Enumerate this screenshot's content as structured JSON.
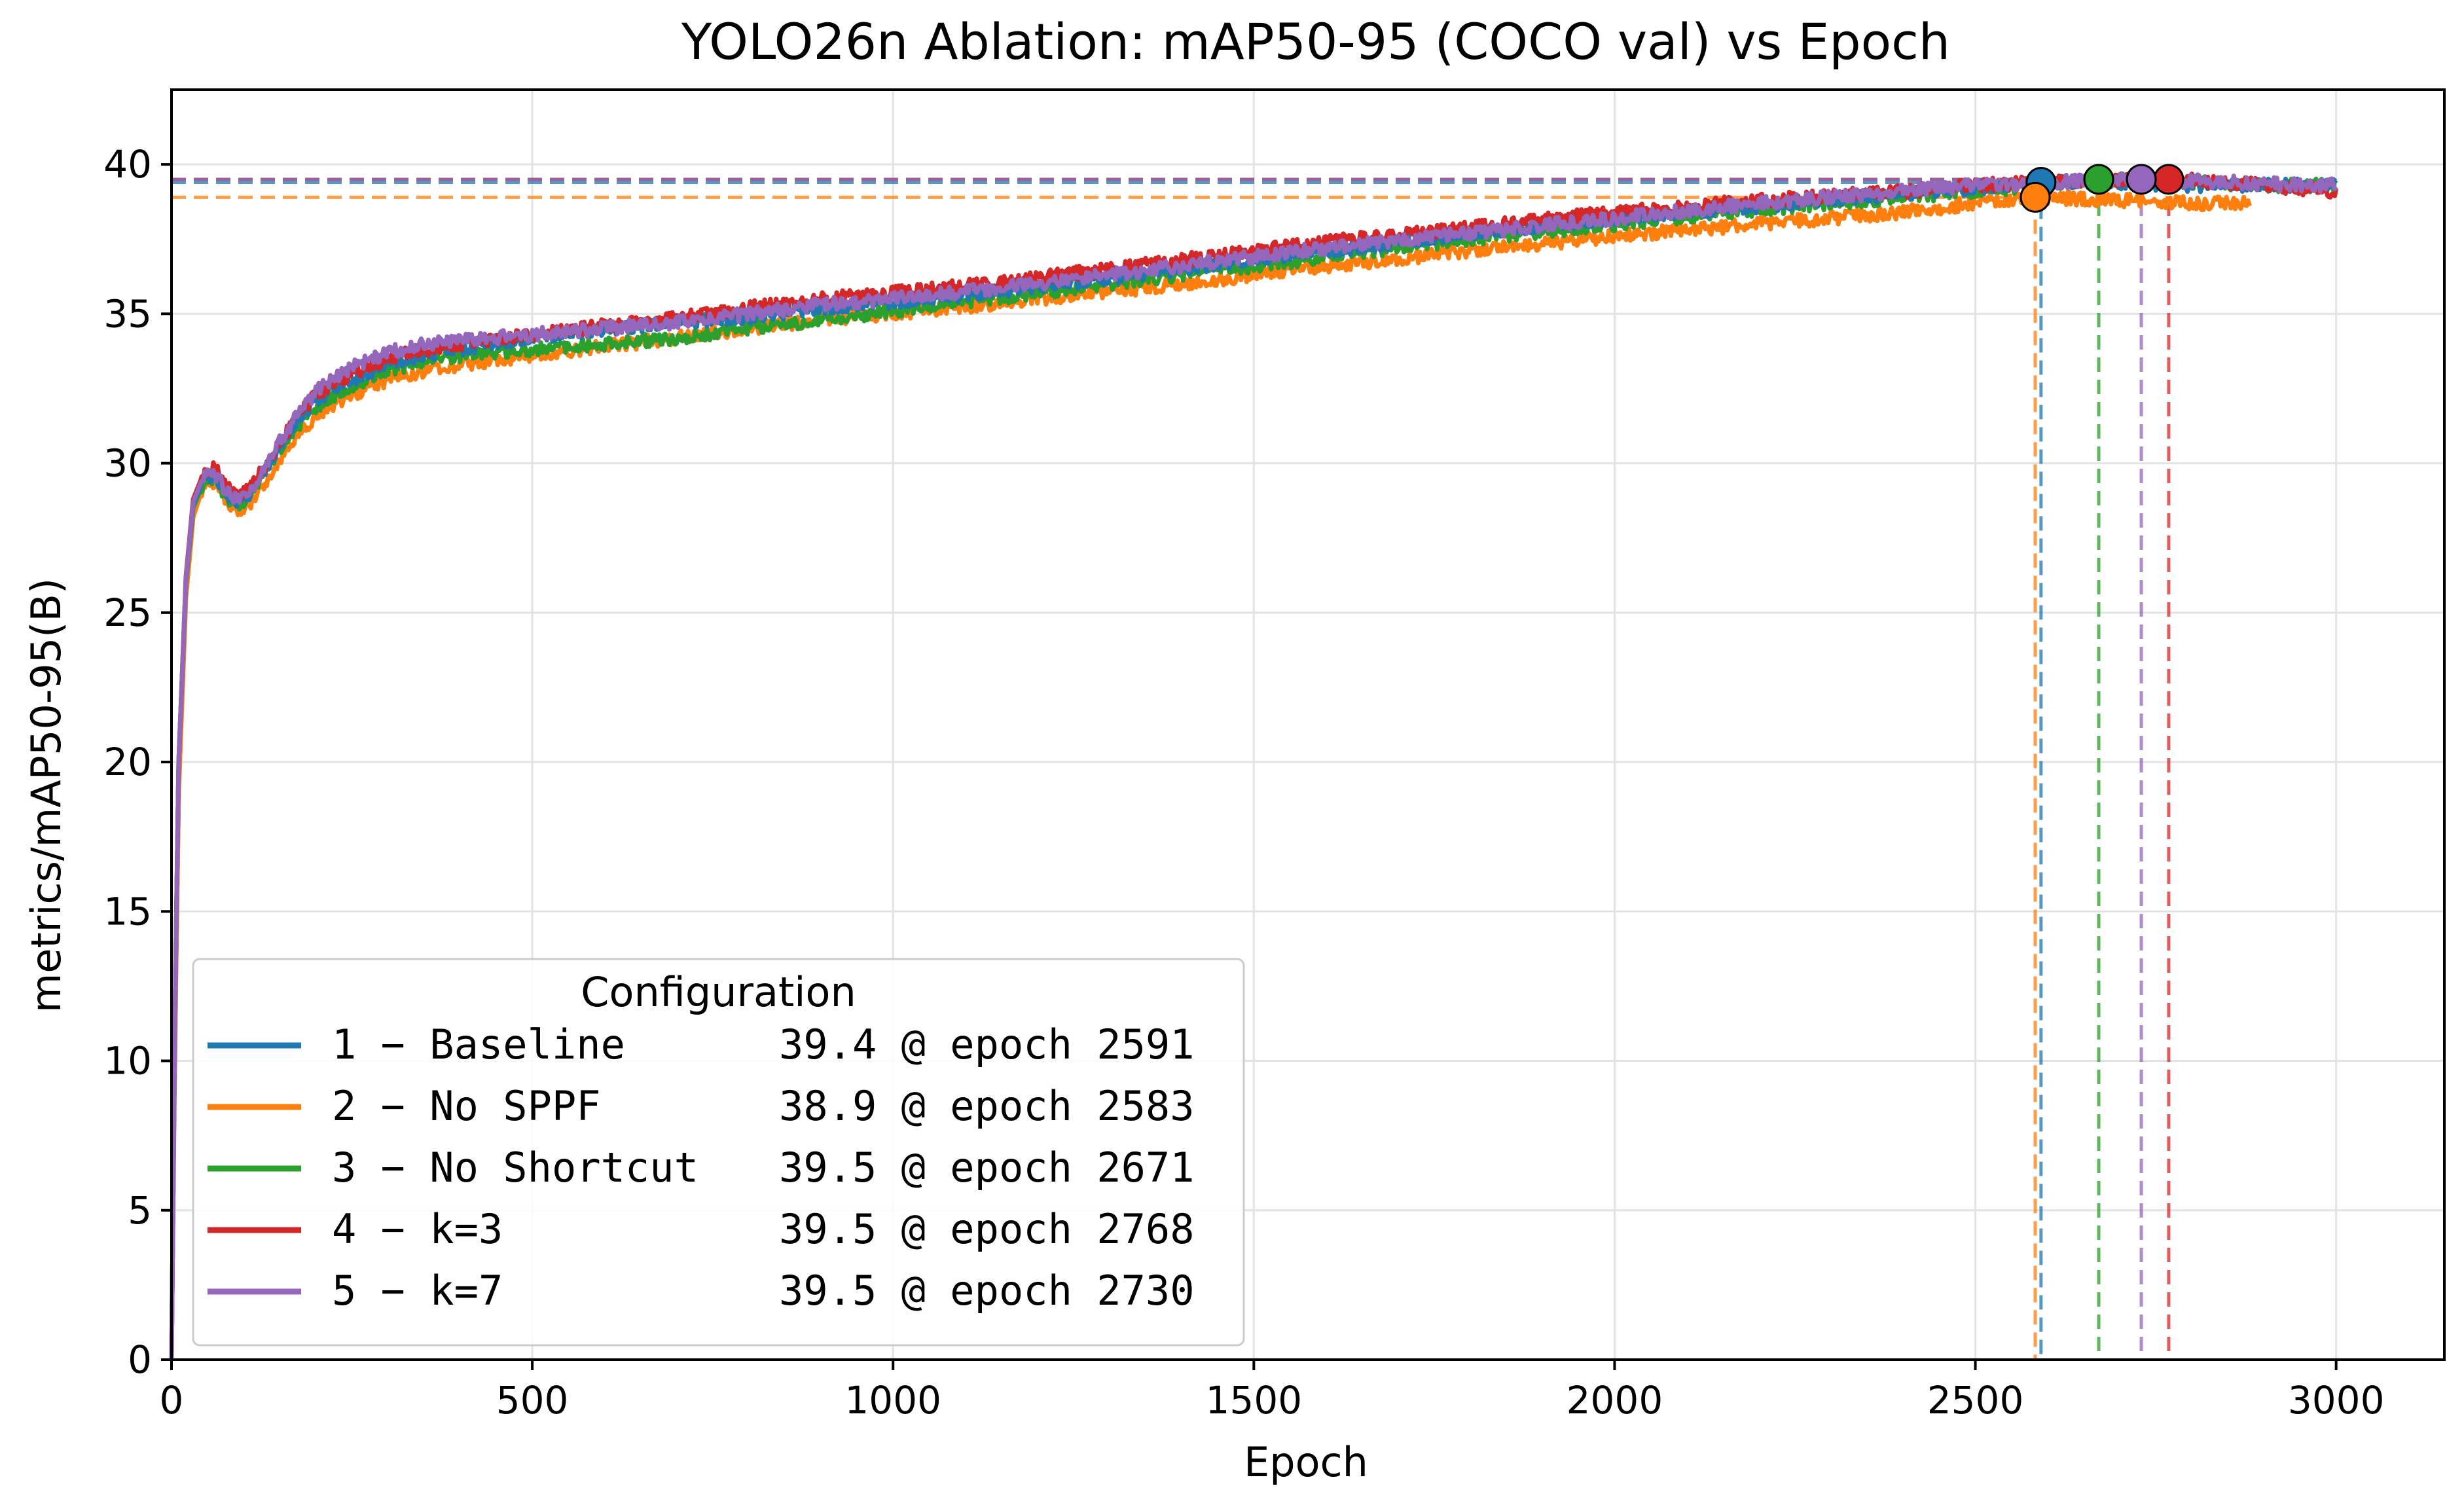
{
  "chart_data": {
    "type": "line",
    "title": "YOLO26n Ablation: mAP50-95 (COCO val) vs Epoch",
    "xlabel": "Epoch",
    "ylabel": "metrics/mAP50-95(B)",
    "xlim": [
      0,
      3150
    ],
    "ylim": [
      0,
      42.5
    ],
    "xticks": [
      0,
      500,
      1000,
      1500,
      2000,
      2500,
      3000
    ],
    "yticks": [
      0,
      5,
      10,
      15,
      20,
      25,
      30,
      35,
      40
    ],
    "grid": true,
    "legend": {
      "title": "Configuration",
      "placement": "lower-left"
    },
    "series": [
      {
        "name": "1 − Baseline",
        "summary": "39.4 @ epoch 2591",
        "color": "#1f77b4",
        "best": {
          "epoch": 2591,
          "value": 39.4
        },
        "end_epoch": 3000,
        "points": [
          [
            0,
            0
          ],
          [
            5,
            12
          ],
          [
            10,
            20
          ],
          [
            20,
            26
          ],
          [
            30,
            28.6
          ],
          [
            45,
            29.5
          ],
          [
            60,
            29.6
          ],
          [
            75,
            29.0
          ],
          [
            90,
            28.7
          ],
          [
            110,
            29.0
          ],
          [
            140,
            30.2
          ],
          [
            170,
            31.3
          ],
          [
            200,
            32.1
          ],
          [
            250,
            32.8
          ],
          [
            300,
            33.3
          ],
          [
            350,
            33.6
          ],
          [
            400,
            33.8
          ],
          [
            500,
            34.2
          ],
          [
            600,
            34.5
          ],
          [
            700,
            34.7
          ],
          [
            800,
            34.9
          ],
          [
            900,
            35.2
          ],
          [
            1000,
            35.4
          ],
          [
            1200,
            35.9
          ],
          [
            1400,
            36.5
          ],
          [
            1600,
            37.1
          ],
          [
            1800,
            37.7
          ],
          [
            2000,
            38.2
          ],
          [
            2200,
            38.6
          ],
          [
            2400,
            39.0
          ],
          [
            2500,
            39.2
          ],
          [
            2591,
            39.4
          ],
          [
            2700,
            39.4
          ],
          [
            2800,
            39.3
          ],
          [
            2900,
            39.3
          ],
          [
            3000,
            39.3
          ]
        ]
      },
      {
        "name": "2 − No SPPF",
        "summary": "38.9 @ epoch 2583",
        "color": "#ff7f0e",
        "best": {
          "epoch": 2583,
          "value": 38.9
        },
        "end_epoch": 2880,
        "points": [
          [
            0,
            0
          ],
          [
            5,
            11
          ],
          [
            10,
            19
          ],
          [
            20,
            25.5
          ],
          [
            30,
            28.2
          ],
          [
            45,
            29.3
          ],
          [
            60,
            29.3
          ],
          [
            75,
            28.7
          ],
          [
            90,
            28.4
          ],
          [
            110,
            28.7
          ],
          [
            140,
            29.7
          ],
          [
            170,
            30.8
          ],
          [
            200,
            31.6
          ],
          [
            250,
            32.3
          ],
          [
            300,
            32.8
          ],
          [
            350,
            33.1
          ],
          [
            400,
            33.3
          ],
          [
            500,
            33.6
          ],
          [
            600,
            33.9
          ],
          [
            700,
            34.2
          ],
          [
            800,
            34.5
          ],
          [
            900,
            34.8
          ],
          [
            1000,
            35.0
          ],
          [
            1200,
            35.5
          ],
          [
            1400,
            36.0
          ],
          [
            1600,
            36.6
          ],
          [
            1800,
            37.1
          ],
          [
            2000,
            37.6
          ],
          [
            2200,
            38.0
          ],
          [
            2400,
            38.4
          ],
          [
            2500,
            38.7
          ],
          [
            2583,
            38.9
          ],
          [
            2700,
            38.8
          ],
          [
            2800,
            38.7
          ],
          [
            2880,
            38.7
          ]
        ]
      },
      {
        "name": "3 − No Shortcut",
        "summary": "39.5 @ epoch 2671",
        "color": "#2ca02c",
        "best": {
          "epoch": 2671,
          "value": 39.5
        },
        "end_epoch": 3000,
        "points": [
          [
            0,
            0
          ],
          [
            5,
            12
          ],
          [
            10,
            20
          ],
          [
            20,
            26
          ],
          [
            30,
            28.5
          ],
          [
            45,
            29.4
          ],
          [
            60,
            29.5
          ],
          [
            75,
            28.9
          ],
          [
            90,
            28.6
          ],
          [
            110,
            28.9
          ],
          [
            140,
            30.0
          ],
          [
            170,
            31.1
          ],
          [
            200,
            31.9
          ],
          [
            250,
            32.6
          ],
          [
            300,
            33.1
          ],
          [
            350,
            33.4
          ],
          [
            400,
            33.6
          ],
          [
            500,
            33.8
          ],
          [
            600,
            34.0
          ],
          [
            700,
            34.2
          ],
          [
            800,
            34.5
          ],
          [
            900,
            34.8
          ],
          [
            1000,
            35.1
          ],
          [
            1200,
            35.7
          ],
          [
            1400,
            36.3
          ],
          [
            1600,
            36.9
          ],
          [
            1800,
            37.5
          ],
          [
            2000,
            38.0
          ],
          [
            2200,
            38.5
          ],
          [
            2400,
            38.9
          ],
          [
            2500,
            39.1
          ],
          [
            2671,
            39.5
          ],
          [
            2800,
            39.4
          ],
          [
            2900,
            39.3
          ],
          [
            3000,
            39.3
          ]
        ]
      },
      {
        "name": "4 − k=3",
        "summary": "39.5 @ epoch 2768",
        "color": "#d62728",
        "best": {
          "epoch": 2768,
          "value": 39.5
        },
        "end_epoch": 3000,
        "points": [
          [
            0,
            0
          ],
          [
            5,
            12
          ],
          [
            10,
            20
          ],
          [
            20,
            26.2
          ],
          [
            30,
            28.8
          ],
          [
            45,
            29.7
          ],
          [
            60,
            29.9
          ],
          [
            75,
            29.3
          ],
          [
            90,
            28.9
          ],
          [
            110,
            29.2
          ],
          [
            140,
            30.3
          ],
          [
            170,
            31.4
          ],
          [
            200,
            32.3
          ],
          [
            250,
            33.0
          ],
          [
            300,
            33.5
          ],
          [
            350,
            33.8
          ],
          [
            400,
            34.0
          ],
          [
            500,
            34.3
          ],
          [
            600,
            34.6
          ],
          [
            700,
            34.9
          ],
          [
            800,
            35.2
          ],
          [
            900,
            35.5
          ],
          [
            1000,
            35.7
          ],
          [
            1200,
            36.2
          ],
          [
            1400,
            36.8
          ],
          [
            1600,
            37.4
          ],
          [
            1800,
            37.9
          ],
          [
            2000,
            38.4
          ],
          [
            2200,
            38.8
          ],
          [
            2400,
            39.1
          ],
          [
            2500,
            39.3
          ],
          [
            2600,
            39.4
          ],
          [
            2768,
            39.5
          ],
          [
            2850,
            39.4
          ],
          [
            2950,
            39.2
          ],
          [
            3000,
            39.1
          ]
        ]
      },
      {
        "name": "5 − k=7",
        "summary": "39.5 @ epoch 2730",
        "color": "#9467bd",
        "best": {
          "epoch": 2730,
          "value": 39.5
        },
        "end_epoch": 3000,
        "points": [
          [
            0,
            0
          ],
          [
            5,
            12
          ],
          [
            10,
            20
          ],
          [
            20,
            26.1
          ],
          [
            30,
            28.7
          ],
          [
            45,
            29.6
          ],
          [
            60,
            29.7
          ],
          [
            75,
            29.1
          ],
          [
            90,
            28.8
          ],
          [
            110,
            29.1
          ],
          [
            140,
            30.3
          ],
          [
            170,
            31.5
          ],
          [
            200,
            32.4
          ],
          [
            250,
            33.2
          ],
          [
            300,
            33.7
          ],
          [
            350,
            34.0
          ],
          [
            400,
            34.1
          ],
          [
            500,
            34.3
          ],
          [
            600,
            34.5
          ],
          [
            700,
            34.7
          ],
          [
            800,
            35.0
          ],
          [
            900,
            35.3
          ],
          [
            1000,
            35.5
          ],
          [
            1200,
            36.0
          ],
          [
            1400,
            36.6
          ],
          [
            1600,
            37.2
          ],
          [
            1800,
            37.7
          ],
          [
            2000,
            38.2
          ],
          [
            2200,
            38.7
          ],
          [
            2400,
            39.1
          ],
          [
            2500,
            39.3
          ],
          [
            2600,
            39.4
          ],
          [
            2730,
            39.5
          ],
          [
            2850,
            39.4
          ],
          [
            2950,
            39.3
          ],
          [
            3000,
            39.3
          ]
        ]
      }
    ]
  }
}
